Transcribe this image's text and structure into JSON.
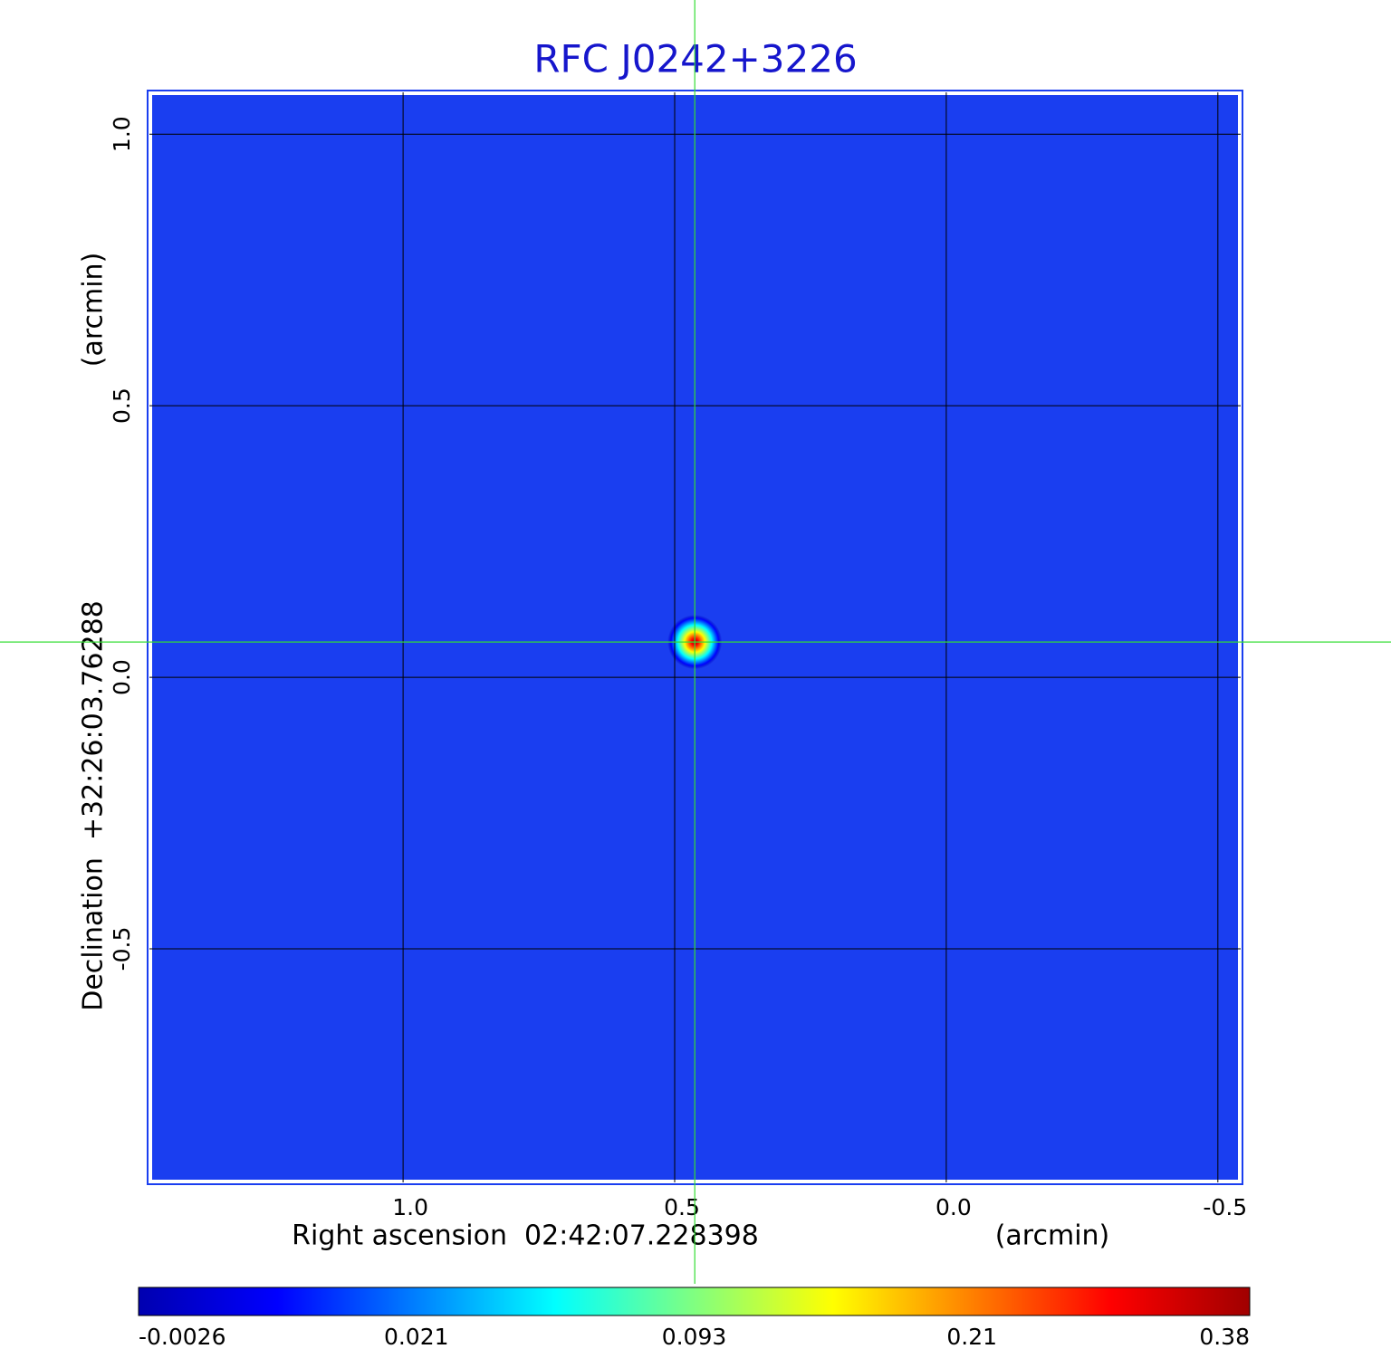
{
  "chart_data": {
    "type": "image",
    "title": "RFC J0242+3226",
    "x_label": "Right ascension  02:42:07.228398",
    "x_unit": "(arcmin)",
    "y_label": "Declination  +32:26:03.76288",
    "y_unit": "(arcmin)",
    "xlim": [
      1.467,
      -0.542
    ],
    "ylim": [
      -0.93,
      1.077
    ],
    "xticks": [
      {
        "value": 1,
        "label": "1.0"
      },
      0.5,
      {
        "value": 0,
        "label": "0.0"
      },
      -0.5
    ],
    "yticks": [
      {
        "value": 1,
        "label": "1.0"
      },
      0.5,
      {
        "value": 0,
        "label": "0.0"
      },
      -0.5
    ],
    "grid": true,
    "image_color": "#1a3ef0",
    "crosshair": {
      "x": 0.463,
      "y": 0.065
    },
    "colorbar": {
      "ticks": [
        -0.0026,
        0.021,
        0.093,
        0.21,
        0.38
      ],
      "colormap": [
        "#0000b0",
        "#0000ff",
        "#0080ff",
        "#00ffff",
        "#80ff80",
        "#ffff00",
        "#ff8000",
        "#ff0000",
        "#a00000"
      ]
    }
  }
}
